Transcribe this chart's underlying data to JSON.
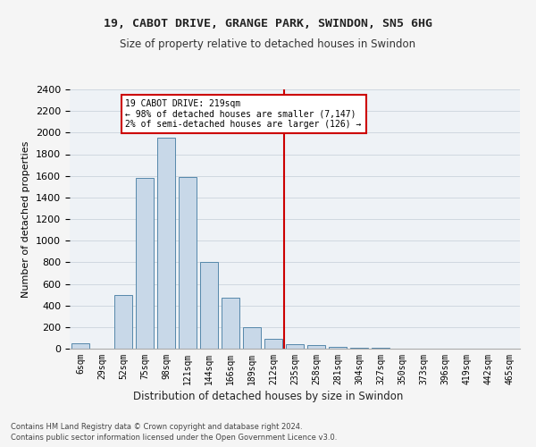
{
  "title_line1": "19, CABOT DRIVE, GRANGE PARK, SWINDON, SN5 6HG",
  "title_line2": "Size of property relative to detached houses in Swindon",
  "xlabel": "Distribution of detached houses by size in Swindon",
  "ylabel": "Number of detached properties",
  "categories": [
    "6sqm",
    "29sqm",
    "52sqm",
    "75sqm",
    "98sqm",
    "121sqm",
    "144sqm",
    "166sqm",
    "189sqm",
    "212sqm",
    "235sqm",
    "258sqm",
    "281sqm",
    "304sqm",
    "327sqm",
    "350sqm",
    "373sqm",
    "396sqm",
    "419sqm",
    "442sqm",
    "465sqm"
  ],
  "values": [
    50,
    0,
    500,
    1580,
    1950,
    1590,
    800,
    470,
    200,
    90,
    40,
    30,
    20,
    5,
    5,
    0,
    0,
    0,
    0,
    0,
    0
  ],
  "bar_color": "#c8d8e8",
  "bar_edge_color": "#5588aa",
  "property_line_x": 9.5,
  "annotation_text": "19 CABOT DRIVE: 219sqm\n← 98% of detached houses are smaller (7,147)\n2% of semi-detached houses are larger (126) →",
  "annotation_box_color": "#ffffff",
  "annotation_box_edge_color": "#cc0000",
  "vline_color": "#cc0000",
  "grid_color": "#d0d8e0",
  "background_color": "#eef2f6",
  "fig_background_color": "#f5f5f5",
  "footer_line1": "Contains HM Land Registry data © Crown copyright and database right 2024.",
  "footer_line2": "Contains public sector information licensed under the Open Government Licence v3.0.",
  "ylim": [
    0,
    2400
  ],
  "yticks": [
    0,
    200,
    400,
    600,
    800,
    1000,
    1200,
    1400,
    1600,
    1800,
    2000,
    2200,
    2400
  ]
}
